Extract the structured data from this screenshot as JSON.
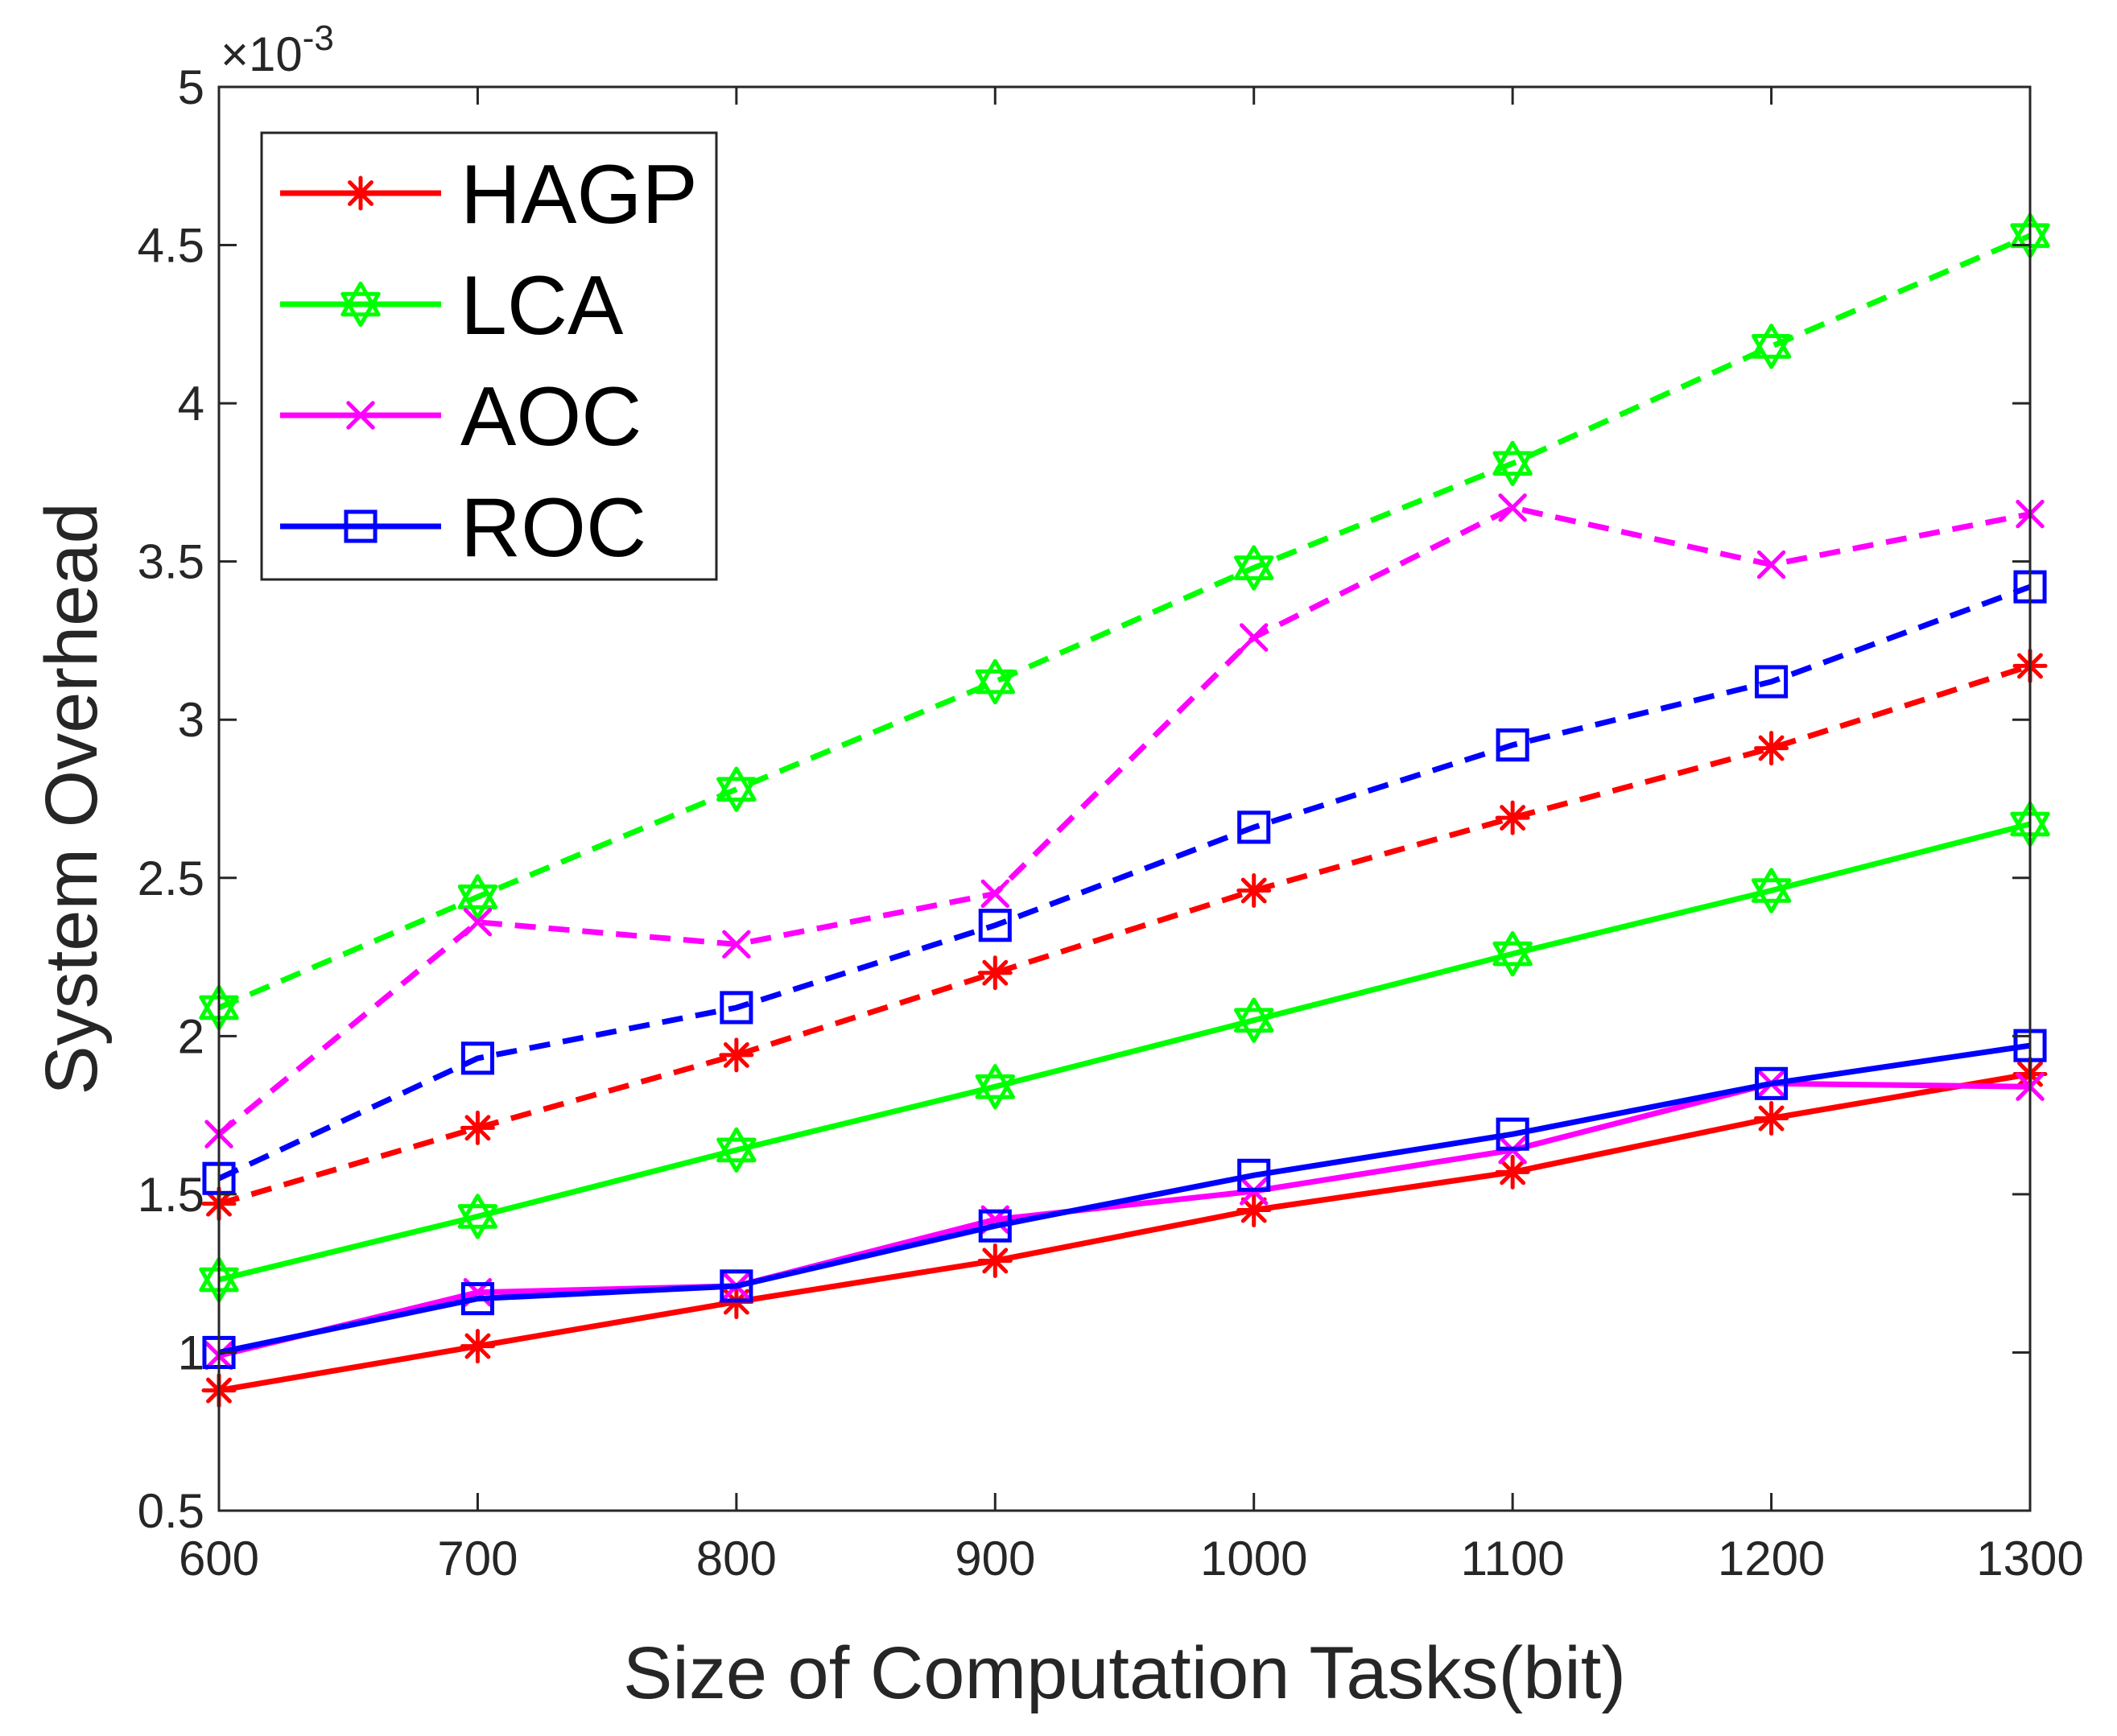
{
  "chart_data": {
    "type": "line",
    "xlabel": "Size of Computation Tasks(bit)",
    "ylabel": "System Overhead",
    "x": [
      600,
      700,
      800,
      900,
      1000,
      1100,
      1200,
      1300
    ],
    "xlim": [
      600,
      1300
    ],
    "ylim": [
      0.5,
      5
    ],
    "xticks": [
      "600",
      "700",
      "800",
      "900",
      "1000",
      "1100",
      "1200",
      "1300"
    ],
    "yticks": [
      "0.5",
      "1",
      "1.5",
      "2",
      "2.5",
      "3",
      "3.5",
      "4",
      "4.5",
      "5"
    ],
    "y_exponent_label": "×10",
    "y_exponent_power": "-3",
    "grid": false,
    "legend_position": "top-left",
    "legend": [
      {
        "name": "HAGP",
        "color": "#ff0000",
        "marker": "asterisk"
      },
      {
        "name": "LCA",
        "color": "#00ff00",
        "marker": "hexagram"
      },
      {
        "name": "AOC",
        "color": "#ff00ff",
        "marker": "x"
      },
      {
        "name": "ROC",
        "color": "#0000ff",
        "marker": "square"
      }
    ],
    "series": [
      {
        "legend": "HAGP",
        "line": "solid",
        "color": "#ff0000",
        "marker": "asterisk",
        "values": [
          0.88,
          1.02,
          1.16,
          1.29,
          1.45,
          1.57,
          1.74,
          1.88
        ]
      },
      {
        "legend": "LCA",
        "line": "solid",
        "color": "#00ff00",
        "marker": "hexagram",
        "values": [
          1.23,
          1.43,
          1.64,
          1.84,
          2.05,
          2.26,
          2.46,
          2.67
        ]
      },
      {
        "legend": "AOC",
        "line": "solid",
        "color": "#ff00ff",
        "marker": "x",
        "values": [
          0.99,
          1.19,
          1.21,
          1.42,
          1.51,
          1.64,
          1.85,
          1.84
        ]
      },
      {
        "legend": "ROC",
        "line": "solid",
        "color": "#0000ff",
        "marker": "square",
        "values": [
          1.0,
          1.17,
          1.21,
          1.4,
          1.56,
          1.69,
          1.85,
          1.97
        ]
      },
      {
        "legend": "HAGP",
        "line": "dashed",
        "color": "#ff0000",
        "marker": "asterisk",
        "values": [
          1.47,
          1.71,
          1.94,
          2.2,
          2.46,
          2.69,
          2.91,
          3.17
        ]
      },
      {
        "legend": "LCA",
        "line": "dashed",
        "color": "#00ff00",
        "marker": "hexagram",
        "values": [
          2.09,
          2.44,
          2.78,
          3.12,
          3.48,
          3.81,
          4.18,
          4.53
        ]
      },
      {
        "legend": "AOC",
        "line": "dashed",
        "color": "#ff00ff",
        "marker": "x",
        "values": [
          1.69,
          2.36,
          2.29,
          2.45,
          3.26,
          3.67,
          3.49,
          3.65
        ]
      },
      {
        "legend": "ROC",
        "line": "dashed",
        "color": "#0000ff",
        "marker": "square",
        "values": [
          1.55,
          1.93,
          2.09,
          2.35,
          2.66,
          2.92,
          3.12,
          3.42
        ]
      }
    ]
  }
}
